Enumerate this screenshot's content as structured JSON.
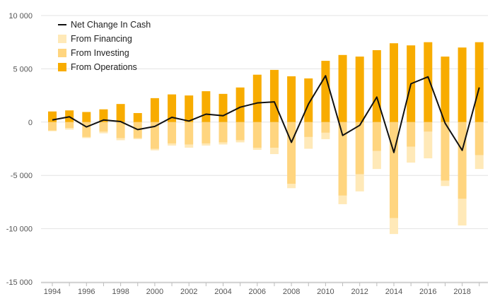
{
  "chart_data": {
    "type": "bar",
    "stacked": true,
    "title": "",
    "xlabel": "",
    "ylabel": "",
    "ylim": [
      -15000,
      10000
    ],
    "yticks": [
      10000,
      5000,
      0,
      -5000,
      -10000,
      -15000
    ],
    "ytick_labels": [
      "10 000",
      "5 000",
      "0",
      "-5 000",
      "-10 000",
      "-15 000"
    ],
    "xtick_labels": [
      "1994",
      "1996",
      "1998",
      "2000",
      "2002",
      "2004",
      "2006",
      "2008",
      "2010",
      "2012",
      "2014",
      "2016",
      "2018"
    ],
    "grid": "horizontal",
    "legend_position": "top-left",
    "categories": [
      1994,
      1995,
      1996,
      1997,
      1998,
      1999,
      2000,
      2001,
      2002,
      2003,
      2004,
      2005,
      2006,
      2007,
      2008,
      2009,
      2010,
      2011,
      2012,
      2013,
      2014,
      2015,
      2016,
      2017,
      2018,
      2019
    ],
    "series": [
      {
        "name": "From Financing",
        "color": "#FFE9B8",
        "values": [
          -50,
          -150,
          -100,
          -150,
          -200,
          -100,
          -150,
          -200,
          -300,
          -200,
          -200,
          -200,
          -200,
          -600,
          -400,
          -1100,
          -600,
          -800,
          -1600,
          -1700,
          -1500,
          -1500,
          -2500,
          -500,
          -2500,
          -1300
        ]
      },
      {
        "name": "From Investing",
        "color": "#FFD57F",
        "values": [
          -800,
          -550,
          -1400,
          -900,
          -1500,
          -1500,
          -2500,
          -2000,
          -2100,
          -2000,
          -1900,
          -1700,
          -2400,
          -2400,
          -5800,
          -1400,
          -1000,
          -6900,
          -4900,
          -2700,
          -9000,
          -2300,
          -900,
          -5500,
          -7200,
          -3100
        ]
      },
      {
        "name": "From Operations",
        "color": "#F8AC00",
        "values": [
          1000,
          1100,
          950,
          1200,
          1700,
          850,
          2250,
          2600,
          2500,
          2900,
          2650,
          3250,
          4450,
          4900,
          4300,
          4100,
          5750,
          6300,
          6150,
          6750,
          7400,
          7200,
          7500,
          6150,
          7000,
          7500
        ]
      },
      {
        "name": "Net Change In Cash",
        "type": "line",
        "color": "#111111",
        "values": [
          200,
          500,
          -450,
          200,
          50,
          -700,
          -400,
          450,
          100,
          750,
          600,
          1400,
          1800,
          1900,
          -1900,
          1700,
          4350,
          -1250,
          -300,
          2350,
          -2850,
          3600,
          4250,
          -100,
          -2650,
          3250
        ]
      }
    ],
    "legend": [
      "Net Change In Cash",
      "From Financing",
      "From Investing",
      "From Operations"
    ]
  }
}
